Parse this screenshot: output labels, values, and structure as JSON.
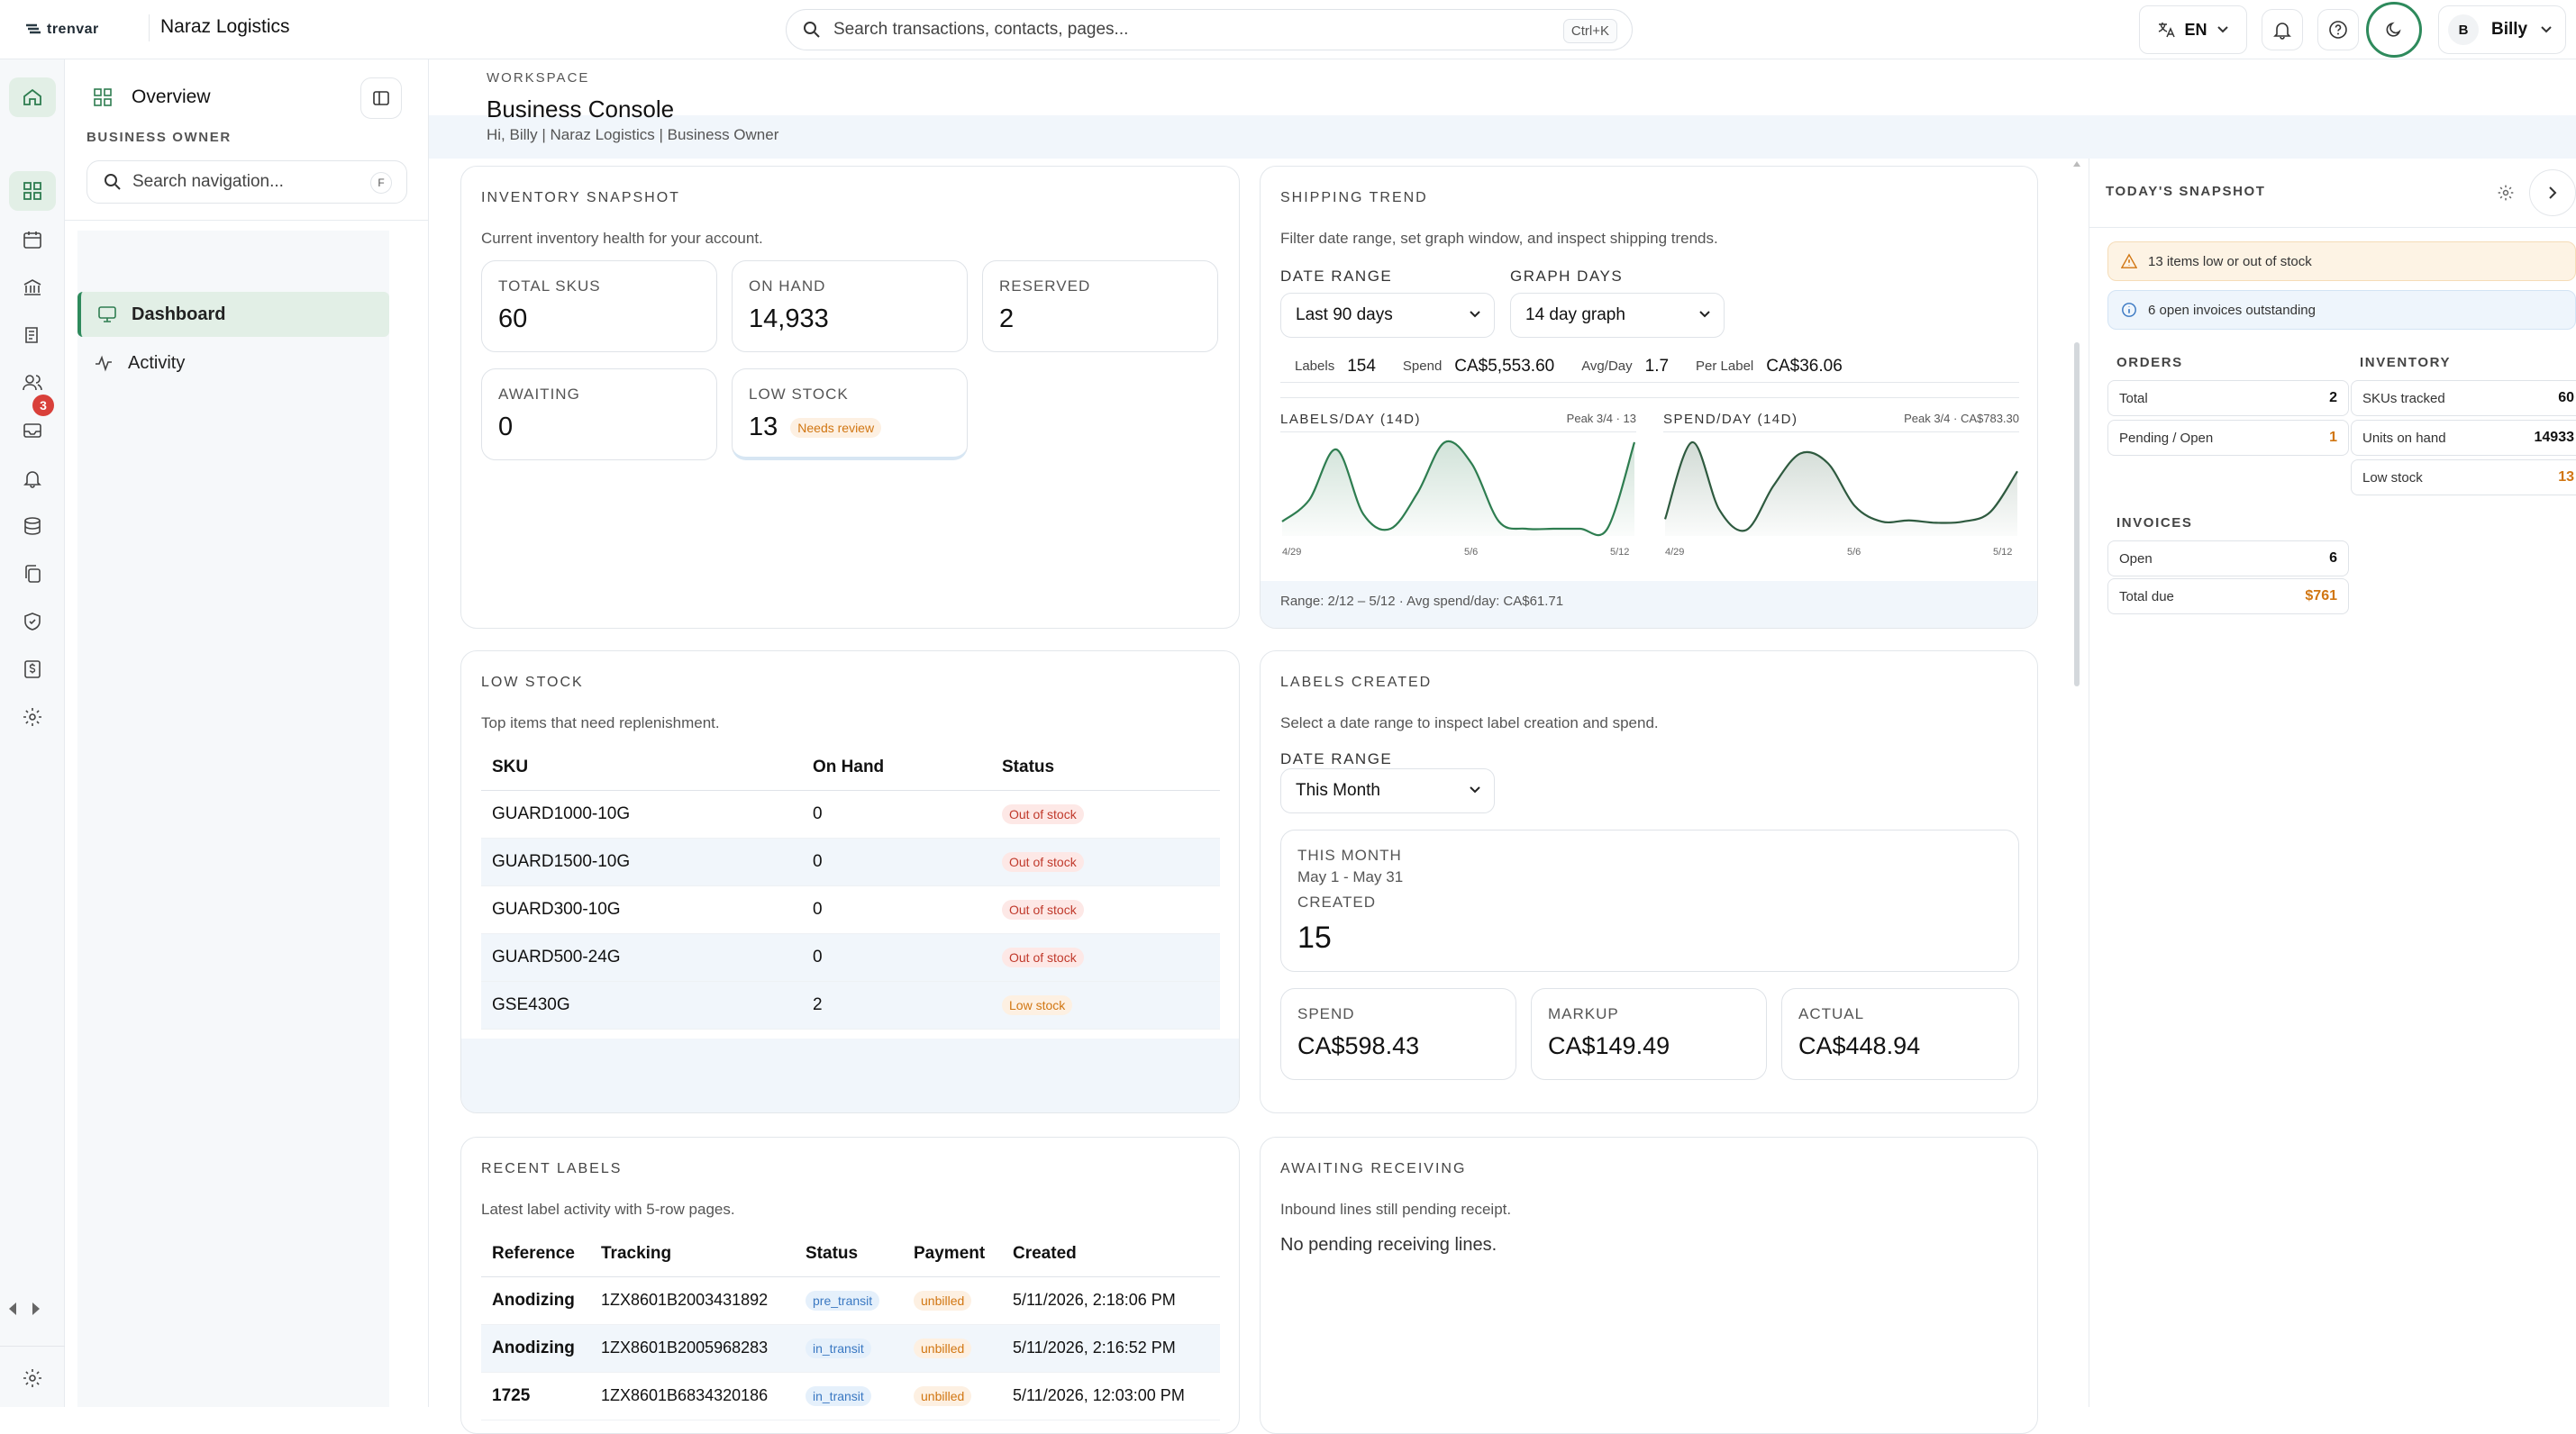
{
  "app": {
    "brand": "trenvar",
    "org": "Naraz Logistics"
  },
  "topbar": {
    "search_placeholder": "Search transactions, contacts, pages...",
    "search_shortcut": "Ctrl+K",
    "language": "EN",
    "user_initial": "B",
    "user_name": "Billy"
  },
  "rail": {
    "badge_count": "3"
  },
  "nav": {
    "title": "Overview",
    "role": "BUSINESS OWNER",
    "search_placeholder": "Search navigation...",
    "search_key": "F",
    "items": [
      {
        "label": "Dashboard"
      },
      {
        "label": "Activity"
      }
    ]
  },
  "header": {
    "eyebrow": "WORKSPACE",
    "title": "Business Console",
    "subtitle": "Hi, Billy | Naraz Logistics | Business Owner"
  },
  "inventory": {
    "heading": "INVENTORY SNAPSHOT",
    "desc": "Current inventory health for your account.",
    "total_skus": {
      "label": "TOTAL SKUS",
      "value": "60"
    },
    "on_hand": {
      "label": "ON HAND",
      "value": "14,933"
    },
    "reserved": {
      "label": "RESERVED",
      "value": "2"
    },
    "awaiting": {
      "label": "AWAITING",
      "value": "0"
    },
    "low_stock": {
      "label": "LOW STOCK",
      "value": "13",
      "badge": "Needs review"
    }
  },
  "shipping": {
    "heading": "SHIPPING TREND",
    "desc": "Filter date range, set graph window, and inspect shipping trends.",
    "date_range_label": "DATE RANGE",
    "date_range_value": "Last 90 days",
    "graph_days_label": "GRAPH DAYS",
    "graph_days_value": "14 day graph",
    "stats": {
      "labels_k": "Labels",
      "labels_v": "154",
      "spend_k": "Spend",
      "spend_v": "CA$5,553.60",
      "avg_k": "Avg/Day",
      "avg_v": "1.7",
      "per_k": "Per Label",
      "per_v": "CA$36.06"
    },
    "footer": "Range: 2/12 – 5/12 · Avg spend/day: CA$61.71"
  },
  "chart_data": [
    {
      "type": "area",
      "title": "LABELS/DAY (14D)",
      "annotation": "Peak 3/4 · 13",
      "x_tick_labels": [
        "4/29",
        "5/6",
        "5/12"
      ],
      "color": "#2e7d50",
      "values": [
        2,
        5,
        12,
        3,
        1,
        6,
        13,
        10,
        2,
        1,
        1,
        1,
        1,
        13
      ]
    },
    {
      "type": "area",
      "title": "SPEND/DAY (14D)",
      "annotation": "Peak 3/4 · CA$783.30",
      "x_tick_labels": [
        "4/29",
        "5/6",
        "5/12"
      ],
      "color": "#2e5a3f",
      "values": [
        140,
        783,
        220,
        50,
        420,
        690,
        610,
        250,
        120,
        130,
        110,
        120,
        200,
        540
      ]
    }
  ],
  "low_stock_table": {
    "heading": "LOW STOCK",
    "desc": "Top items that need replenishment.",
    "columns": [
      "SKU",
      "On Hand",
      "Status"
    ],
    "rows": [
      {
        "sku": "GUARD1000-10G",
        "on_hand": "0",
        "status": "Out of stock"
      },
      {
        "sku": "GUARD1500-10G",
        "on_hand": "0",
        "status": "Out of stock"
      },
      {
        "sku": "GUARD300-10G",
        "on_hand": "0",
        "status": "Out of stock"
      },
      {
        "sku": "GUARD500-24G",
        "on_hand": "0",
        "status": "Out of stock"
      },
      {
        "sku": "GSE430G",
        "on_hand": "2",
        "status": "Low stock"
      }
    ]
  },
  "labels_created": {
    "heading": "LABELS CREATED",
    "desc": "Select a date range to inspect label creation and spend.",
    "date_range_label": "DATE RANGE",
    "date_range_value": "This Month",
    "period_label": "THIS MONTH",
    "period_range": "May 1 - May 31",
    "created_label": "CREATED",
    "created_value": "15",
    "spend": {
      "label": "SPEND",
      "value": "CA$598.43"
    },
    "markup": {
      "label": "MARKUP",
      "value": "CA$149.49"
    },
    "actual": {
      "label": "ACTUAL",
      "value": "CA$448.94"
    }
  },
  "recent_labels": {
    "heading": "RECENT LABELS",
    "desc": "Latest label activity with 5-row pages.",
    "columns": [
      "Reference",
      "Tracking",
      "Status",
      "Payment",
      "Created"
    ],
    "rows": [
      {
        "ref": "Anodizing",
        "tracking": "1ZX8601B2003431892",
        "status": "pre_transit",
        "payment": "unbilled",
        "created": "5/11/2026, 2:18:06 PM"
      },
      {
        "ref": "Anodizing",
        "tracking": "1ZX8601B2005968283",
        "status": "in_transit",
        "payment": "unbilled",
        "created": "5/11/2026, 2:16:52 PM"
      },
      {
        "ref": "1725",
        "tracking": "1ZX8601B6834320186",
        "status": "in_transit",
        "payment": "unbilled",
        "created": "5/11/2026, 12:03:00 PM"
      }
    ]
  },
  "awaiting_receiving": {
    "heading": "AWAITING RECEIVING",
    "desc": "Inbound lines still pending receipt.",
    "empty": "No pending receiving lines."
  },
  "snapshot": {
    "heading": "TODAY'S SNAPSHOT",
    "alert_stock": "13 items low or out of stock",
    "alert_invoices": "6 open invoices outstanding",
    "orders": {
      "heading": "ORDERS",
      "total_k": "Total",
      "total_v": "2",
      "pending_k": "Pending / Open",
      "pending_v": "1"
    },
    "inventory": {
      "heading": "INVENTORY",
      "skus_k": "SKUs tracked",
      "skus_v": "60",
      "units_k": "Units on hand",
      "units_v": "14933",
      "low_k": "Low stock",
      "low_v": "13"
    },
    "invoices": {
      "heading": "INVOICES",
      "open_k": "Open",
      "open_v": "6",
      "due_k": "Total due",
      "due_v": "$761"
    }
  }
}
